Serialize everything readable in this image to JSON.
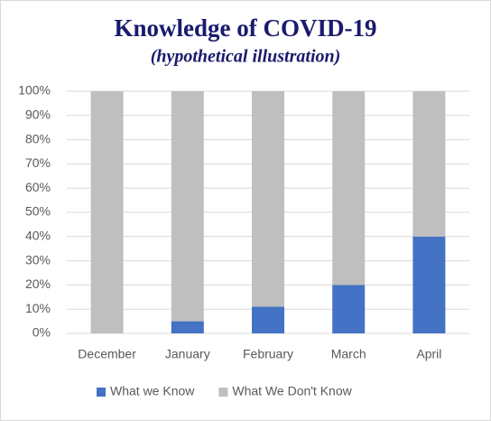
{
  "chart_data": {
    "type": "bar",
    "stacked": true,
    "title": "Knowledge of COVID-19",
    "subtitle": "(hypothetical illustration)",
    "categories": [
      "December",
      "January",
      "February",
      "March",
      "April"
    ],
    "series": [
      {
        "name": "What we Know",
        "color": "#4472c4",
        "values": [
          0,
          5,
          11,
          20,
          40
        ]
      },
      {
        "name": "What We Don't Know",
        "color": "#bfbfbf",
        "values": [
          100,
          95,
          89,
          80,
          60
        ]
      }
    ],
    "ylim": [
      0,
      100
    ],
    "yticks": [
      {
        "value": 0,
        "label": "0%"
      },
      {
        "value": 10,
        "label": "10%"
      },
      {
        "value": 20,
        "label": "20%"
      },
      {
        "value": 30,
        "label": "30%"
      },
      {
        "value": 40,
        "label": "40%"
      },
      {
        "value": 50,
        "label": "50%"
      },
      {
        "value": 60,
        "label": "60%"
      },
      {
        "value": 70,
        "label": "70%"
      },
      {
        "value": 80,
        "label": "80%"
      },
      {
        "value": 90,
        "label": "90%"
      },
      {
        "value": 100,
        "label": "100%"
      }
    ],
    "grid": true,
    "legend": "bottom"
  }
}
